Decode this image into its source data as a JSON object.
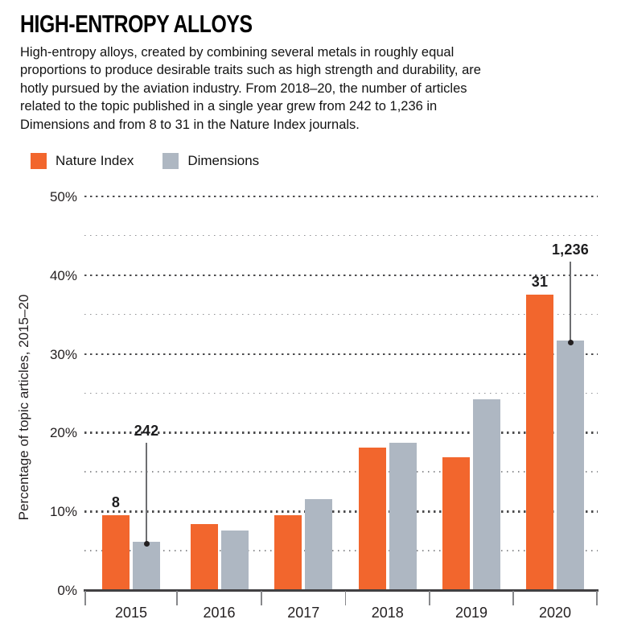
{
  "header": {
    "title": "HIGH-ENTROPY ALLOYS",
    "description_lines": [
      "High-entropy alloys, created by combining several metals in roughly equal",
      "proportions to produce desirable traits such as high strength and durability, are",
      "hotly pursued by the aviation industry. From 2018–20, the number of articles",
      "related to the topic published in a single year grew from 242 to 1,236 in",
      "Dimensions and from 8 to 31 in the Nature Index journals."
    ]
  },
  "legend": {
    "items": [
      {
        "label": "Nature Index",
        "color": "#f2662d",
        "icon": "orange-square-swatch"
      },
      {
        "label": "Dimensions",
        "color": "#aeb7c2",
        "icon": "gray-square-swatch"
      }
    ]
  },
  "chart_data": {
    "type": "bar",
    "title": "HIGH-ENTROPY ALLOYS",
    "categories": [
      "2015",
      "2016",
      "2017",
      "2018",
      "2019",
      "2020"
    ],
    "series": [
      {
        "name": "Nature Index",
        "color": "#f2662d",
        "values": [
          9.5,
          8.4,
          9.5,
          18.1,
          16.9,
          37.5
        ]
      },
      {
        "name": "Dimensions",
        "color": "#aeb7c2",
        "values": [
          6.1,
          7.6,
          11.6,
          18.7,
          24.2,
          31.7
        ]
      }
    ],
    "xlabel": "",
    "ylabel": "Percentage of topic articles, 2015–20",
    "ylim": [
      0,
      50
    ],
    "yticks": [
      "0%",
      "10%",
      "20%",
      "30%",
      "40%",
      "50%"
    ],
    "grid": "dotted horizontal lines every 5%, minor at 5% offsets, major at 10% multiples",
    "legend_position": "top-left above plot",
    "annotations": [
      {
        "category": "2015",
        "series_index": 0,
        "text": "8",
        "placement": "above-bar"
      },
      {
        "category": "2015",
        "series_index": 1,
        "text": "242",
        "placement": "callout",
        "label_bottom_value": 19
      },
      {
        "category": "2020",
        "series_index": 0,
        "text": "31",
        "placement": "above-bar"
      },
      {
        "category": "2020",
        "series_index": 1,
        "text": "1,236",
        "placement": "callout",
        "label_bottom_value": 42
      }
    ]
  },
  "colors": {
    "nature_index_orange": "#f2662d",
    "dimensions_gray": "#aeb7c2",
    "axis_line": "#414042",
    "text": "#231f20"
  }
}
